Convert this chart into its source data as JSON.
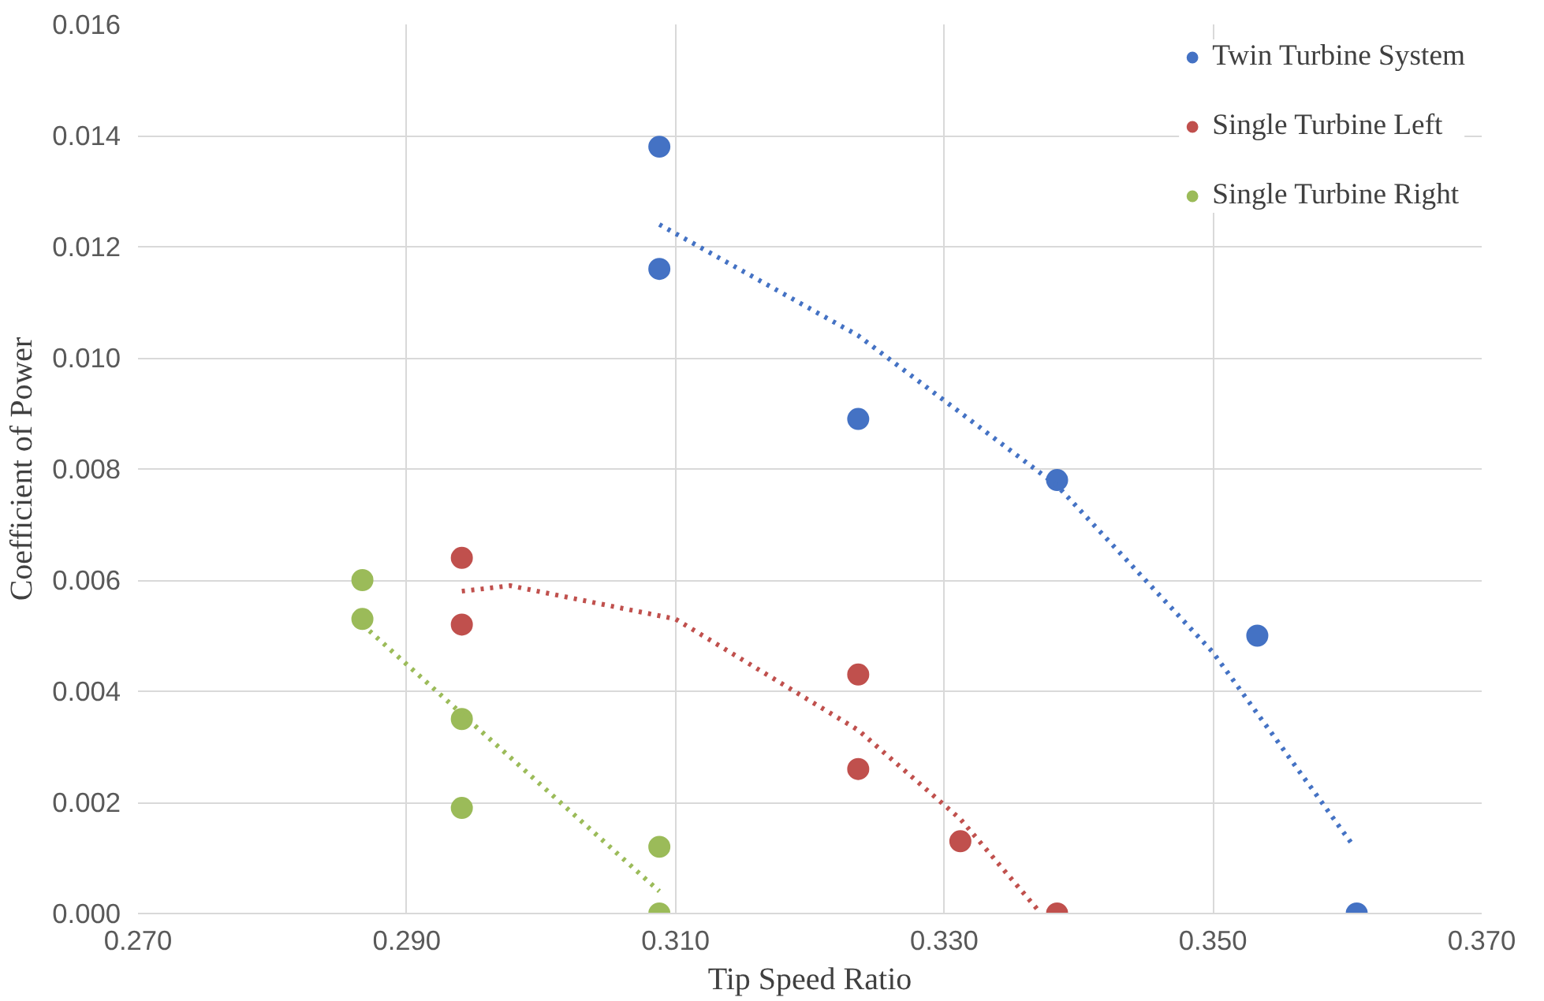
{
  "chart_data": {
    "type": "scatter",
    "xlabel": "Tip Speed Ratio",
    "ylabel": "Coefficient of Power",
    "xlim": [
      0.27,
      0.37
    ],
    "xticks": [
      {
        "value": 0.27,
        "label": "0.270"
      },
      {
        "value": 0.29,
        "label": "0.290"
      },
      {
        "value": 0.31,
        "label": "0.310"
      },
      {
        "value": 0.33,
        "label": "0.330"
      },
      {
        "value": 0.35,
        "label": "0.350"
      },
      {
        "value": 0.37,
        "label": "0.370"
      }
    ],
    "ylim": [
      0,
      0.016
    ],
    "yticks": [
      {
        "value": 0,
        "label": "0.000"
      },
      {
        "value": 0.002,
        "label": "0.002"
      },
      {
        "value": 0.004,
        "label": "0.004"
      },
      {
        "value": 0.006,
        "label": "0.006"
      },
      {
        "value": 0.008,
        "label": "0.008"
      },
      {
        "value": 0.01,
        "label": "0.010"
      },
      {
        "value": 0.012,
        "label": "0.012"
      },
      {
        "value": 0.014,
        "label": "0.014"
      },
      {
        "value": 0.016,
        "label": "0.016"
      }
    ],
    "grid": true,
    "legend": "top right",
    "marker": "circle",
    "series": [
      {
        "name": "Twin Turbine System",
        "color": "#4472c4",
        "x": [
          0.3088,
          0.3088,
          0.3236,
          0.3384,
          0.3533,
          0.3607
        ],
        "values": [
          0.0138,
          0.0116,
          0.0089,
          0.0078,
          0.005,
          0.0
        ]
      },
      {
        "name": "Single Turbine Left",
        "color": "#c0504d",
        "x": [
          0.2941,
          0.2941,
          0.3236,
          0.3236,
          0.3312,
          0.3384
        ],
        "values": [
          0.0064,
          0.0052,
          0.0043,
          0.0026,
          0.0013,
          0.0
        ]
      },
      {
        "name": "Single Turbine Right",
        "color": "#9bbb59",
        "x": [
          0.2867,
          0.2867,
          0.2941,
          0.2941,
          0.3088,
          0.3088
        ],
        "values": [
          0.006,
          0.0053,
          0.0035,
          0.0019,
          0.0012,
          0.0
        ]
      },
      {
        "type": "line",
        "line_style": "dotted",
        "marker": "none",
        "color": "#4472c4",
        "x": [
          0.3088,
          0.3236,
          0.3384,
          0.35,
          0.3605
        ],
        "values": [
          0.0124,
          0.0104,
          0.0077,
          0.0047,
          0.0012
        ]
      },
      {
        "type": "line",
        "line_style": "dotted",
        "marker": "none",
        "color": "#c0504d",
        "x": [
          0.2941,
          0.2977,
          0.31,
          0.3236,
          0.3312,
          0.3372
        ],
        "values": [
          0.0058,
          0.0059,
          0.0053,
          0.0033,
          0.0017,
          0.0
        ]
      },
      {
        "type": "line",
        "line_style": "dotted",
        "marker": "none",
        "color": "#9bbb59",
        "x": [
          0.2867,
          0.3088
        ],
        "values": [
          0.0052,
          0.0004
        ]
      }
    ]
  }
}
